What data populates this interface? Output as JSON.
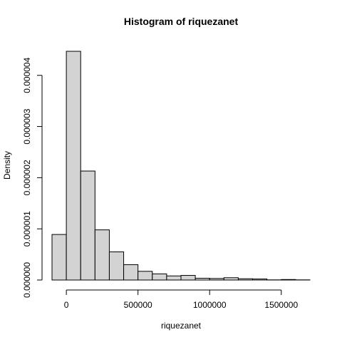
{
  "chart_data": {
    "type": "bar",
    "title": "Histogram of riquezanet",
    "xlabel": "riquezanet",
    "ylabel": "Density",
    "bin_width": 100000,
    "bins": [
      [
        -100000,
        0,
        8.9e-07
      ],
      [
        0,
        100000,
        4.47e-06
      ],
      [
        100000,
        200000,
        2.13e-06
      ],
      [
        200000,
        300000,
        9.8e-07
      ],
      [
        300000,
        400000,
        5.5e-07
      ],
      [
        400000,
        500000,
        3e-07
      ],
      [
        500000,
        600000,
        1.7e-07
      ],
      [
        600000,
        700000,
        1.2e-07
      ],
      [
        700000,
        800000,
        8e-08
      ],
      [
        800000,
        900000,
        9e-08
      ],
      [
        900000,
        1000000,
        3.5e-08
      ],
      [
        1000000,
        1100000,
        3e-08
      ],
      [
        1100000,
        1200000,
        4.5e-08
      ],
      [
        1200000,
        1300000,
        2.5e-08
      ],
      [
        1300000,
        1400000,
        2e-08
      ],
      [
        1400000,
        1500000,
        3e-09
      ],
      [
        1500000,
        1600000,
        1e-08
      ],
      [
        1600000,
        1700000,
        3e-09
      ]
    ],
    "xlim": [
      -100000,
      1700000
    ],
    "ylim": [
      0,
      4.47e-06
    ],
    "x_ticks": [
      {
        "value": 0,
        "label": "0"
      },
      {
        "value": 500000,
        "label": "500000"
      },
      {
        "value": 1000000,
        "label": "1000000"
      },
      {
        "value": 1500000,
        "label": "1500000"
      }
    ],
    "y_ticks": [
      {
        "value": 0,
        "label": "0.000000"
      },
      {
        "value": 1e-06,
        "label": "0.000001"
      },
      {
        "value": 2e-06,
        "label": "0.000002"
      },
      {
        "value": 3e-06,
        "label": "0.000003"
      },
      {
        "value": 4e-06,
        "label": "0.000004"
      }
    ],
    "bar_fill": "#d3d3d3",
    "bar_stroke": "#000000",
    "grid": false,
    "legend": "none"
  }
}
